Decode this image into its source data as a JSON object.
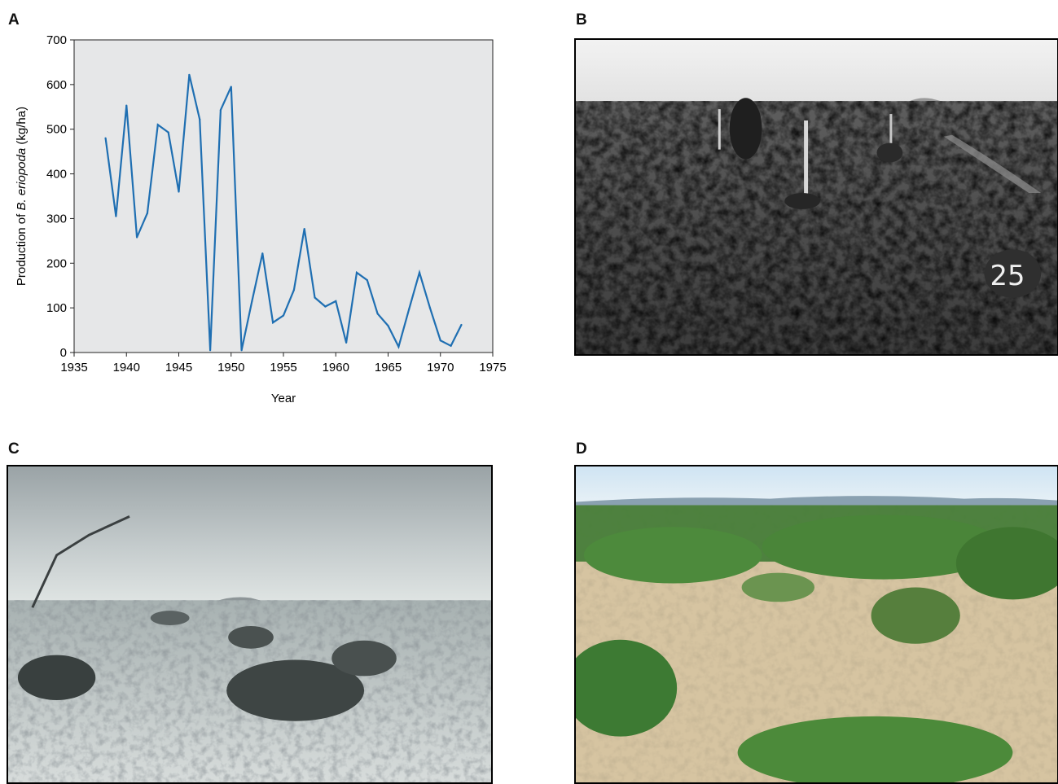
{
  "panels": {
    "a": {
      "letter": "A"
    },
    "b": {
      "letter": "B"
    },
    "c": {
      "letter": "C"
    },
    "d": {
      "letter": "D"
    }
  },
  "photo_b": {
    "plot_number": "25"
  },
  "chart_data": {
    "type": "line",
    "title": "",
    "xlabel": "Year",
    "ylabel_prefix": "Production of ",
    "ylabel_italic": "B. eriopoda",
    "ylabel_suffix": " (kg/ha)",
    "xlim": [
      1935,
      1975
    ],
    "ylim": [
      0,
      700
    ],
    "xticks": [
      1935,
      1940,
      1945,
      1950,
      1955,
      1960,
      1965,
      1970,
      1975
    ],
    "yticks": [
      0,
      100,
      200,
      300,
      400,
      500,
      600,
      700
    ],
    "grid": false,
    "background": "#e6e7e8",
    "line_color": "#1f6fb2",
    "series": [
      {
        "x": [
          1938,
          1939,
          1940,
          1941,
          1942,
          1943,
          1944,
          1945,
          1946,
          1947,
          1948,
          1949,
          1950,
          1951,
          1952,
          1953,
          1954,
          1955,
          1956,
          1957,
          1958,
          1959,
          1960,
          1961,
          1962,
          1963,
          1964,
          1965,
          1966,
          1967,
          1968,
          1969,
          1970,
          1971,
          1972
        ],
        "y": [
          480,
          305,
          553,
          258,
          312,
          510,
          493,
          360,
          622,
          522,
          5,
          543,
          595,
          5,
          115,
          222,
          67,
          83,
          140,
          277,
          123,
          103,
          115,
          22,
          179,
          162,
          87,
          60,
          13,
          97,
          179,
          100,
          27,
          15,
          62
        ]
      }
    ]
  }
}
